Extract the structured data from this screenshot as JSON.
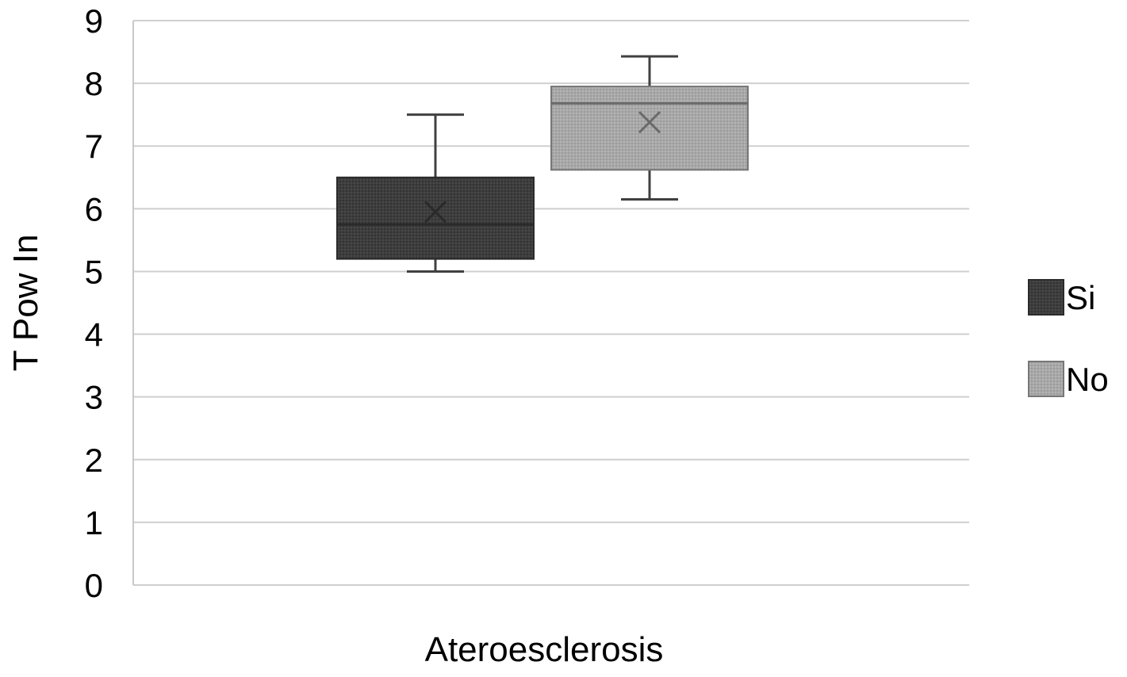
{
  "chart_data": {
    "type": "box",
    "xlabel": "Ateroesclerosis",
    "ylabel": "T Pow In",
    "ylim": [
      0,
      9
    ],
    "yticks": [
      "0",
      "1",
      "2",
      "3",
      "4",
      "5",
      "6",
      "7",
      "8",
      "9"
    ],
    "grid": true,
    "legend_position": "right",
    "series": [
      {
        "name": "Si",
        "color": "#3a3a3a",
        "min": 5.0,
        "q1": 5.2,
        "median": 5.75,
        "mean": 5.95,
        "q3": 6.5,
        "max": 7.5
      },
      {
        "name": "No",
        "color": "#a9a9a9",
        "min": 6.15,
        "q1": 6.62,
        "median": 7.68,
        "mean": 7.38,
        "q3": 7.95,
        "max": 8.43
      }
    ]
  }
}
